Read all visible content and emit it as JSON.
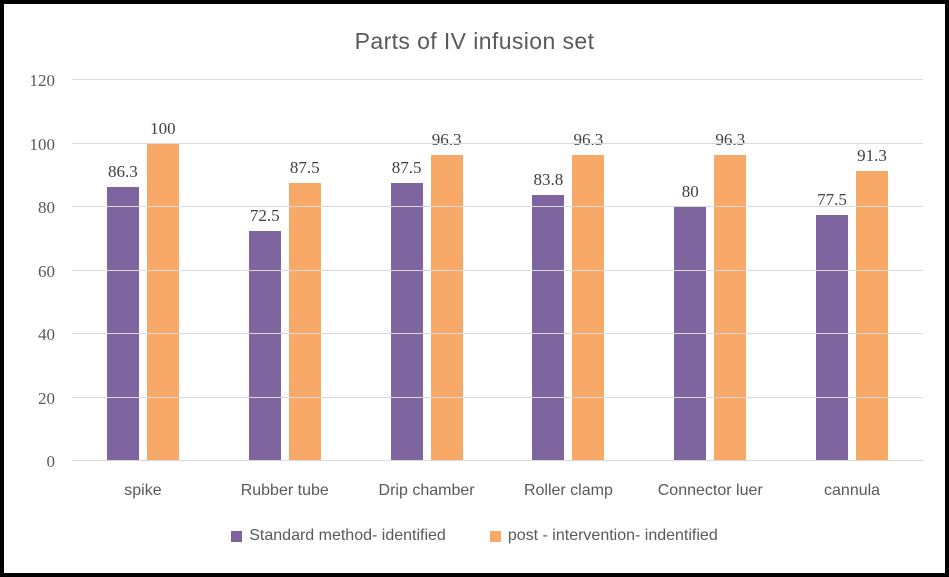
{
  "chart_data": {
    "type": "bar",
    "title": "Parts of IV infusion set",
    "categories": [
      "spike",
      "Rubber tube",
      "Drip chamber",
      "Roller clamp",
      "Connector luer",
      "cannula"
    ],
    "series": [
      {
        "name": "Standard method- identified",
        "color": "#7E65A0",
        "values": [
          86.3,
          72.5,
          87.5,
          83.8,
          80,
          77.5
        ]
      },
      {
        "name": "post - intervention- indentified",
        "color": "#F8A968",
        "values": [
          100,
          87.5,
          96.3,
          96.3,
          96.3,
          91.3
        ]
      }
    ],
    "xlabel": "",
    "ylabel": "",
    "ylim": [
      0,
      120
    ],
    "yticks": [
      0,
      20,
      40,
      60,
      80,
      100,
      120
    ],
    "grid": true,
    "gridline_color": "#D9D9D9",
    "legend_position": "bottom",
    "colors": {
      "title_text": "#595959",
      "axis_text": "#595959",
      "data_label_text": "#3f3f3f",
      "frame_border": "#000000"
    }
  }
}
